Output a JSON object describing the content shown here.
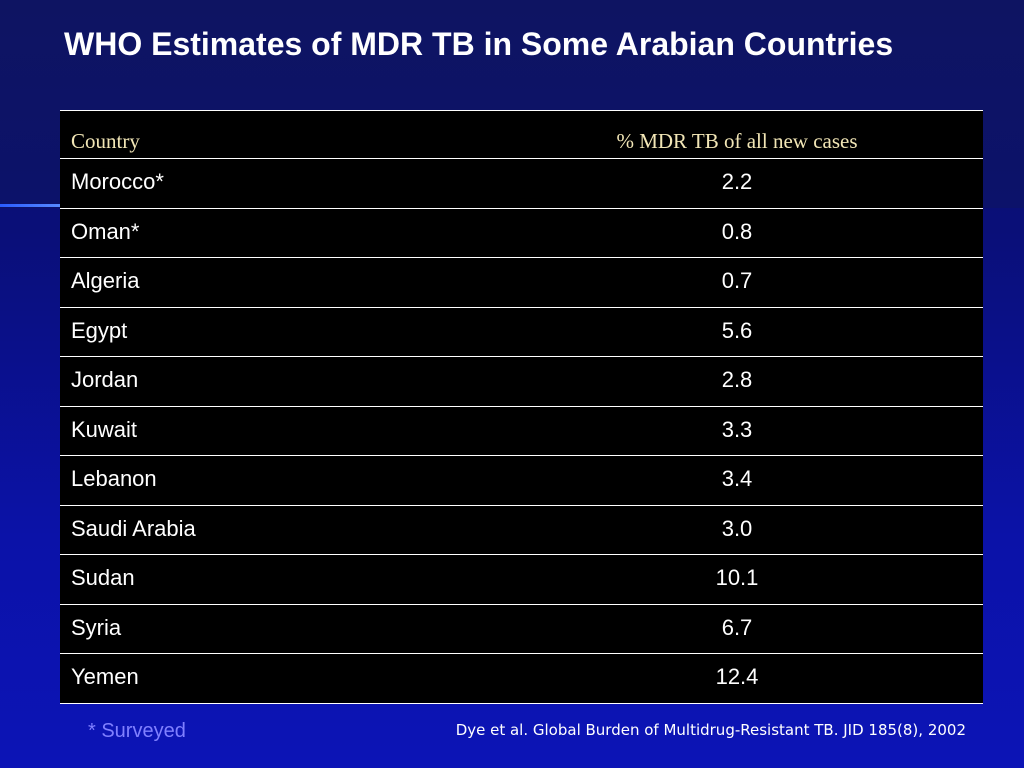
{
  "title": "WHO Estimates of MDR TB in Some Arabian Countries",
  "table": {
    "headers": [
      "Country",
      "% MDR TB of all new cases"
    ],
    "rows": [
      {
        "country": "Morocco*",
        "value": "2.2"
      },
      {
        "country": "Oman*",
        "value": "0.8"
      },
      {
        "country": "Algeria",
        "value": "0.7"
      },
      {
        "country": "Egypt",
        "value": "5.6"
      },
      {
        "country": "Jordan",
        "value": "2.8"
      },
      {
        "country": "Kuwait",
        "value": "3.3"
      },
      {
        "country": "Lebanon",
        "value": "3.4"
      },
      {
        "country": "Saudi Arabia",
        "value": "3.0"
      },
      {
        "country": "Sudan",
        "value": "10.1"
      },
      {
        "country": "Syria",
        "value": "6.7"
      },
      {
        "country": "Yemen",
        "value": "12.4"
      }
    ]
  },
  "footnote": "* Surveyed",
  "citation": "Dye et al. Global Burden of Multidrug-Resistant TB. JID 185(8), 2002",
  "colors": {
    "background": "#0a0f78",
    "title": "#ffffff",
    "header_text": "#f2e6b6",
    "table_bg": "#000000",
    "footnote": "#8080ff"
  }
}
